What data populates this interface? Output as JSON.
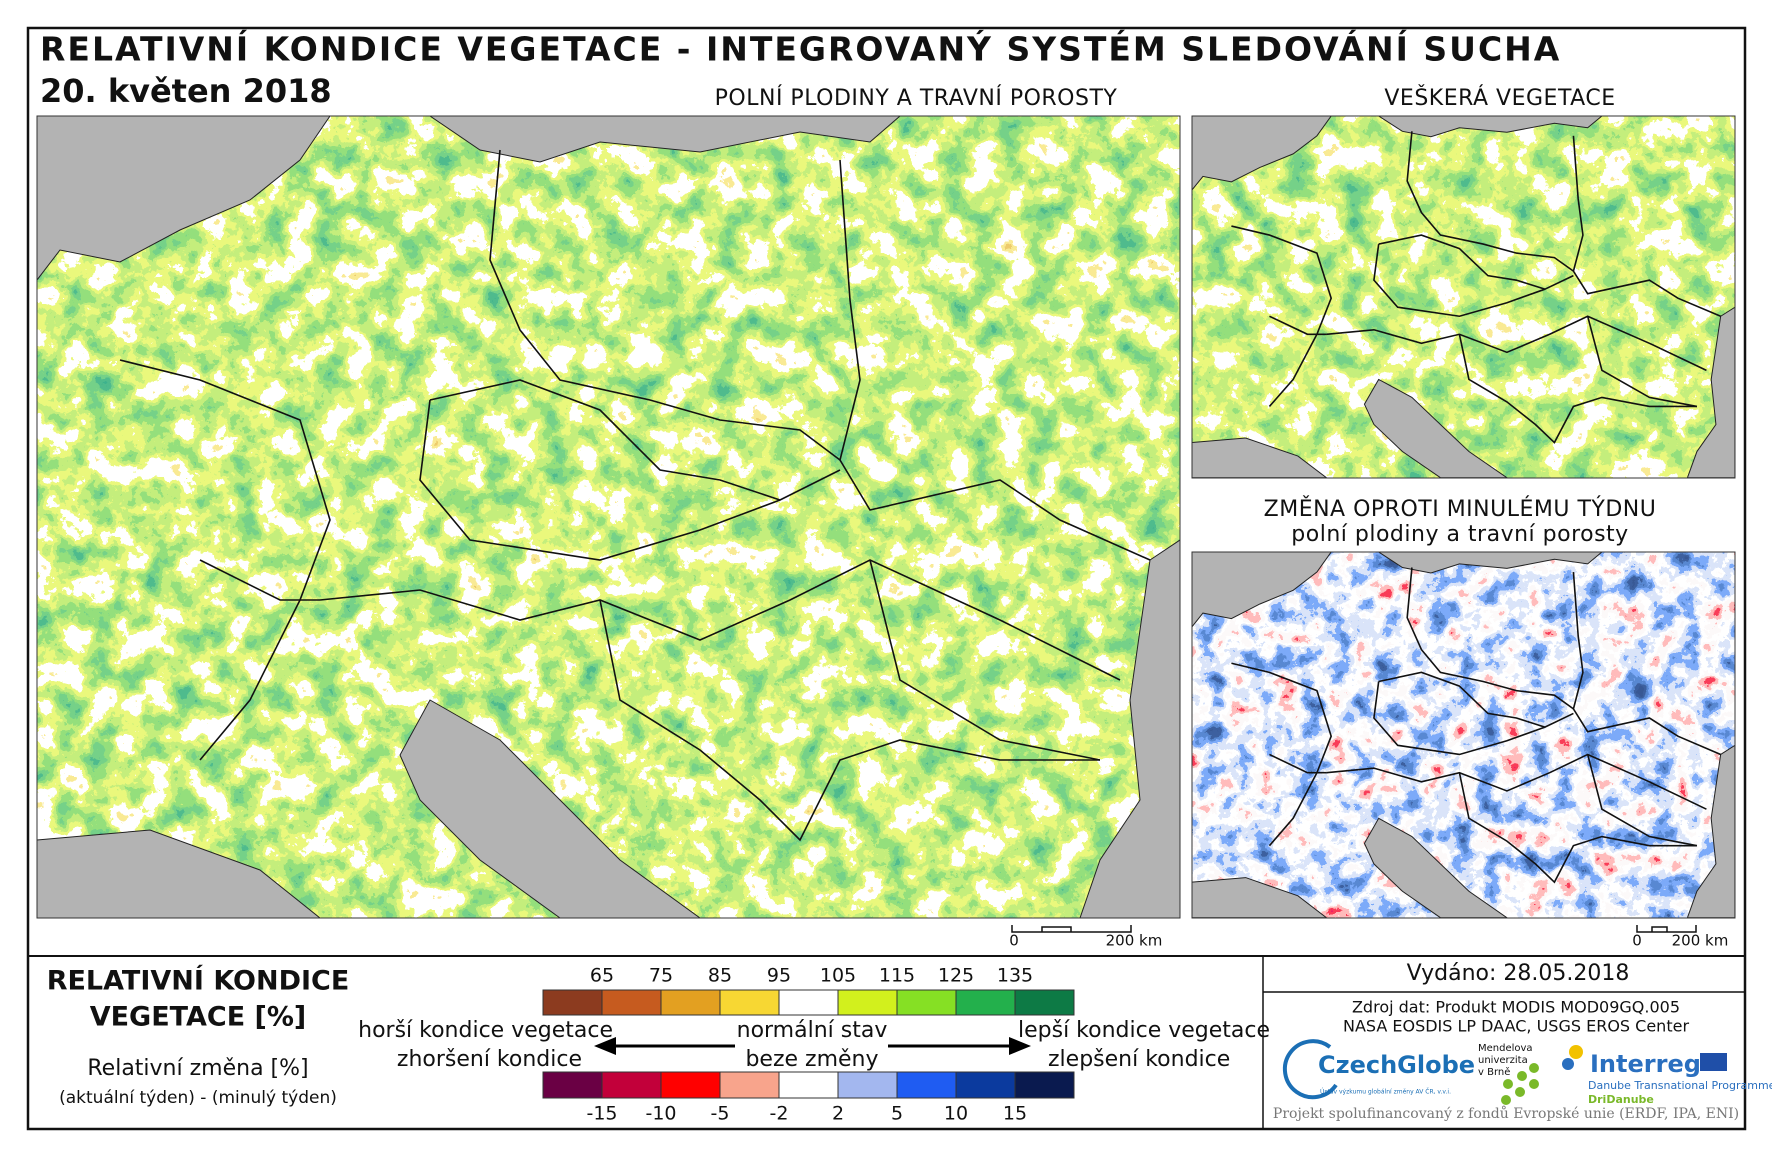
{
  "header": {
    "title": "RELATIVNÍ KONDICE VEGETACE - INTEGROVANÝ SYSTÉM SLEDOVÁNÍ SUCHA",
    "date": "20. květen 2018"
  },
  "maps": {
    "main_title": "POLNÍ PLODINY A TRAVNÍ POROSTY",
    "all_title": "VEŠKERÁ VEGETACE",
    "change_title": "ZMĚNA OPROTI MINULÉMU TÝDNU",
    "change_subtitle": "polní plodiny a travní porosty",
    "scale_start": "0",
    "scale_end": "200 km"
  },
  "legend": {
    "title_1": "RELATIVNÍ KONDICE",
    "title_2": "VEGETACE [%]",
    "change_title": "Relativní změna [%]",
    "change_note": "(aktuální týden) - (minulý týden)",
    "condition": {
      "colors": [
        "#8c3b1f",
        "#c65b1f",
        "#e3a021",
        "#f7d733",
        "#ffffff",
        "#d2f01d",
        "#86e024",
        "#23b04c",
        "#0d7a45"
      ],
      "ticks": [
        65,
        75,
        85,
        95,
        105,
        115,
        125,
        135
      ]
    },
    "change": {
      "colors": [
        "#6a0044",
        "#c2003a",
        "#ff0000",
        "#f8a48c",
        "#ffffff",
        "#a3b7ef",
        "#1f5cf2",
        "#0b3a9e",
        "#0a1a4f"
      ],
      "ticks": [
        -15,
        -10,
        -5,
        -2,
        2,
        5,
        10,
        15
      ]
    },
    "worse": "horší kondice vegetace",
    "normal": "normální stav",
    "better": "lepší kondice vegetace",
    "worsening": "zhoršení kondice",
    "no_change": "beze změny",
    "improving": "zlepšení kondice"
  },
  "footer": {
    "issued": "Vydáno: 28.05.2018",
    "source_1": "Zdroj dat: Produkt MODIS MOD09GQ.005",
    "source_2": "NASA EOSDIS LP DAAC, USGS EROS Center",
    "czechglobe": "CzechGlobe",
    "czechglobe_sub": "Ústav výzkumu globální změny AV ČR, v.v.i.",
    "mendel_1": "Mendelova",
    "mendel_2": "univerzita",
    "mendel_3": "v Brně",
    "interreg": "Interreg",
    "interreg_sub": "Danube Transnational Programme",
    "dridanube": "DriDanube",
    "project": "Projekt spolufinancovaný z fondů Evropské unie (ERDF, IPA, ENI)"
  }
}
